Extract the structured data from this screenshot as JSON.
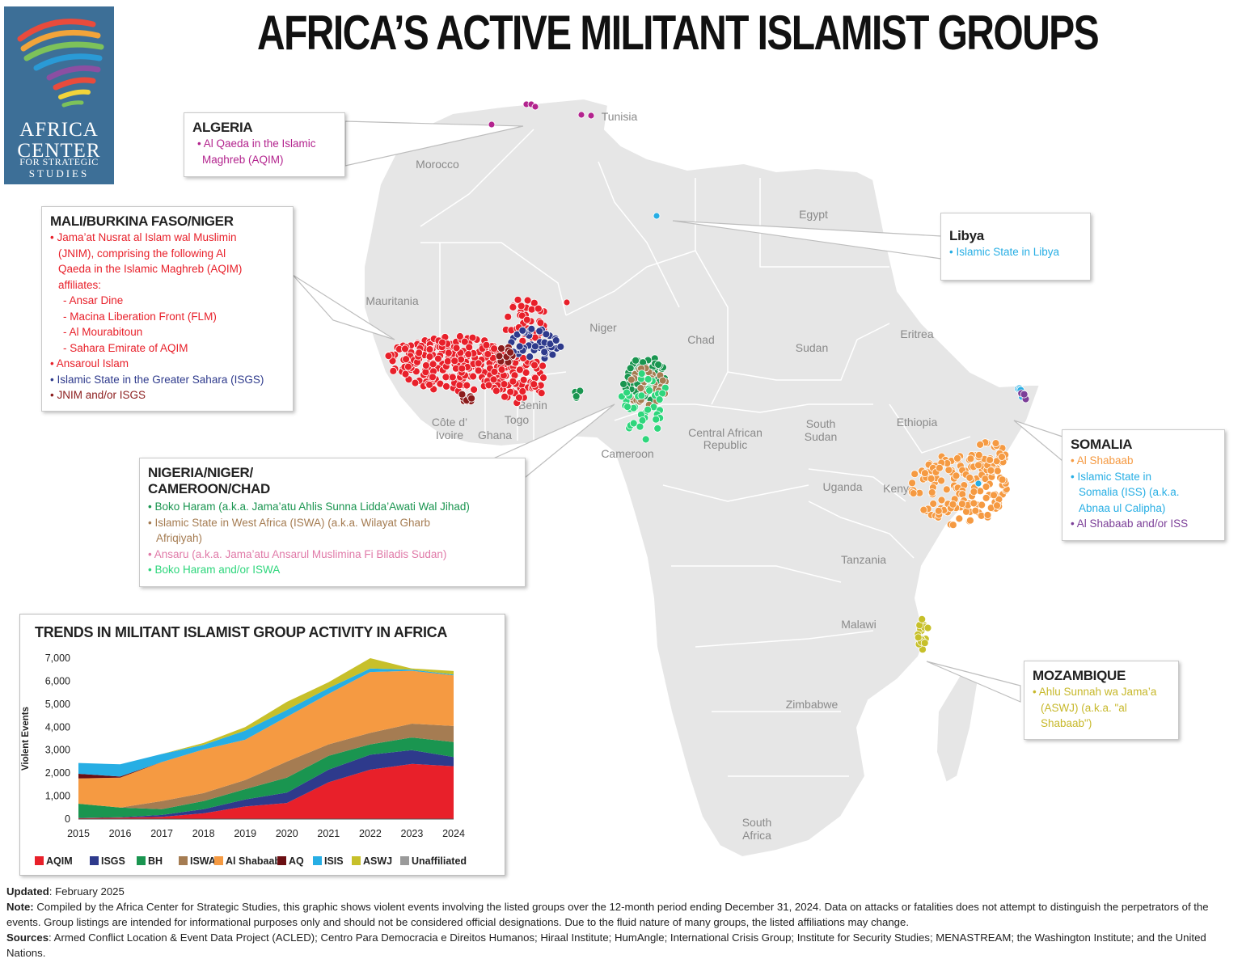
{
  "logo": {
    "line1": "AFRICA",
    "line2": "CENTER",
    "line3": "FOR STRATEGIC",
    "line4": "STUDIES"
  },
  "title": "AFRICA’S ACTIVE MILITANT ISLAMIST GROUPS",
  "colors": {
    "aqim": "#e8202a",
    "isgs": "#2e3a8c",
    "bh": "#1a9550",
    "iswa": "#a57c52",
    "shabaab": "#f59a42",
    "aq": "#6b0e12",
    "isis": "#27aee4",
    "aswj": "#c7c02a",
    "unaffiliated": "#9a9a9a",
    "jnim": "#e8202a",
    "jnim_isgs": "#8b1c1c",
    "bh_iswa": "#2ed67c",
    "ansaru": "#e07aa8",
    "algeria": "#b3248e",
    "shabaab_iss": "#7c3f98"
  },
  "countries": [
    "Tunisia",
    "Morocco",
    "Egypt",
    "Mauritania",
    "Niger",
    "Chad",
    "Sudan",
    "Eritrea",
    "Ethiopia",
    "Côte d’",
    "Ivoire",
    "Ghana",
    "Togo",
    "Benin",
    "Cameroon",
    "Central African",
    "Republic",
    "South",
    "Sudan",
    "Uganda",
    "Kenya",
    "Tanzania",
    "Malawi",
    "Zimbabwe",
    "South",
    "Africa"
  ],
  "callouts": {
    "algeria": {
      "title": "ALGERIA",
      "items": [
        "• Al Qaeda in the Islamic",
        "Maghreb (AQIM)"
      ]
    },
    "libya": {
      "title": "Libya",
      "items": [
        "• Islamic State in Libya"
      ]
    },
    "mali": {
      "title": "MALI/BURKINA FASO/NIGER",
      "items": [
        "• Jama’at Nusrat al Islam wal Muslimin",
        "(JNIM), comprising the following Al",
        "Qaeda in the Islamic Maghreb (AQIM)",
        "affiliates:",
        "- Ansar Dine",
        "- Macina Liberation Front (FLM)",
        "- Al Mourabitoun",
        "- Sahara Emirate of AQIM",
        "• Ansaroul Islam",
        "• Islamic State in the Greater Sahara (ISGS)",
        "• JNIM and/or ISGS"
      ]
    },
    "nigeria": {
      "title_line1": "NIGERIA/NIGER/",
      "title_line2": "CAMEROON/CHAD",
      "items": [
        "• Boko Haram (a.k.a. Jama’atu Ahlis Sunna Lidda’Awati Wal Jihad)",
        "• Islamic State in West Africa (ISWA) (a.k.a. Wilayat Gharb",
        "Afriqiyah)",
        "• Ansaru (a.k.a. Jama’atu Ansarul Muslimina Fi Biladis Sudan)",
        "• Boko Haram and/or ISWA"
      ]
    },
    "somalia": {
      "title": "SOMALIA",
      "items": [
        "• Al Shabaab",
        "• Islamic State in",
        "Somalia (ISS) (a.k.a.",
        "Abnaa ul Calipha)",
        "• Al Shabaab and/or ISS"
      ]
    },
    "mozambique": {
      "title": "MOZAMBIQUE",
      "items": [
        "• Ahlu Sunnah wa Jama’a",
        "(ASWJ) (a.k.a. \"al",
        "Shabaab\")"
      ]
    }
  },
  "chart_title": "TRENDS IN MILITANT ISLAMIST GROUP ACTIVITY IN AFRICA",
  "chart_data": {
    "type": "area",
    "title": "TRENDS IN MILITANT ISLAMIST GROUP ACTIVITY IN AFRICA",
    "xlabel": "",
    "ylabel": "Violent Events",
    "ylim": [
      0,
      7000
    ],
    "yticks": [
      "0",
      "1,000",
      "2,000",
      "3,000",
      "4,000",
      "5,000",
      "6,000",
      "7,000"
    ],
    "x": [
      "2015",
      "2016",
      "2017",
      "2018",
      "2019",
      "2020",
      "2021",
      "2022",
      "2023",
      "2024"
    ],
    "stacked": true,
    "legend_position": "bottom",
    "series": [
      {
        "name": "AQIM",
        "values": [
          40,
          60,
          100,
          250,
          550,
          700,
          1600,
          2150,
          2400,
          2300
        ]
      },
      {
        "name": "ISGS",
        "values": [
          10,
          20,
          80,
          180,
          300,
          450,
          550,
          650,
          600,
          400
        ]
      },
      {
        "name": "BH",
        "values": [
          620,
          420,
          250,
          350,
          450,
          650,
          600,
          450,
          550,
          650
        ]
      },
      {
        "name": "ISWA",
        "values": [
          0,
          0,
          350,
          350,
          400,
          700,
          500,
          500,
          600,
          700
        ]
      },
      {
        "name": "Al Shabaab",
        "values": [
          1100,
          1300,
          1700,
          1900,
          1750,
          1950,
          2200,
          2650,
          2300,
          2200
        ]
      },
      {
        "name": "AQ",
        "values": [
          200,
          50,
          0,
          0,
          0,
          0,
          0,
          0,
          0,
          0
        ]
      },
      {
        "name": "ISIS",
        "values": [
          470,
          530,
          350,
          200,
          400,
          300,
          250,
          150,
          50,
          40
        ]
      },
      {
        "name": "ASWJ",
        "values": [
          0,
          0,
          0,
          80,
          150,
          350,
          250,
          450,
          50,
          150
        ]
      },
      {
        "name": "Unaffiliated",
        "values": [
          0,
          0,
          0,
          0,
          0,
          0,
          0,
          0,
          0,
          0
        ]
      }
    ]
  },
  "legend": [
    "AQIM",
    "ISGS",
    "BH",
    "ISWA",
    "Al Shabaab",
    "AQ",
    "ISIS",
    "ASWJ",
    "Unaffiliated"
  ],
  "footer": {
    "updated_label": "Updated",
    "updated_text": ": February 2025",
    "note_label": "Note:",
    "note_text": " Compiled by the Africa Center for Strategic Studies, this graphic shows violent events involving the listed groups over the 12-month period ending December 31, 2024. Data on attacks or fatalities does not attempt to distinguish the perpetrators of the events. Group listings are intended for informational purposes only and should not be considered official designations. Due to the fluid nature of many groups, the listed affiliations may change.",
    "sources_label": "Sources",
    "sources_text": ": Armed Conflict Location & Event Data Project (ACLED); Centro Para Democracia e Direitos Humanos; Hiraal Institute; HumAngle; International Crisis Group;  Institute for Security Studies; MENASTREAM; the Washington Institute; and the United Nations."
  }
}
